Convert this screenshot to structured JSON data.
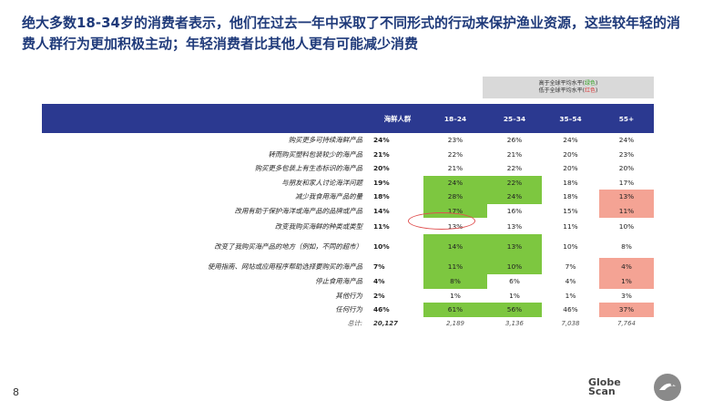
{
  "title": "绝大多数18-34岁的消费者表示，他们在过去一年中采取了不同形式的行动来保护渔业资源，这些较年轻的消费人群行为更加积极主动；年轻消费者比其他人更有可能减少消费",
  "legend": {
    "line1_prefix": "高于全球平均水平(",
    "line1_color": "绿色",
    "line1_suffix": ")",
    "line2_prefix": "低于全球平均水平(",
    "line2_color": "红色",
    "line2_suffix": ")"
  },
  "colors": {
    "header_bg": "#2b3990",
    "green": "#7dc740",
    "red": "#f4a394",
    "title": "#1f3a7a"
  },
  "page_number": "8",
  "logo_text": [
    "Globe",
    "Scan"
  ],
  "chart_data": {
    "type": "table",
    "columns": [
      "海鲜人群",
      "18–24",
      "25–34",
      "35–54",
      "55+"
    ],
    "rows": [
      {
        "label": "购买更多可持续海鲜产品",
        "values": [
          "24%",
          "23%",
          "26%",
          "24%",
          "24%"
        ],
        "highlight": [
          "",
          "",
          "",
          "",
          ""
        ]
      },
      {
        "label": "转而购买塑料包装较少的海产品",
        "values": [
          "21%",
          "22%",
          "21%",
          "20%",
          "23%"
        ],
        "highlight": [
          "",
          "",
          "",
          "",
          ""
        ]
      },
      {
        "label": "购买更多包装上有生态标识的海产品",
        "values": [
          "20%",
          "21%",
          "22%",
          "20%",
          "20%"
        ],
        "highlight": [
          "",
          "",
          "",
          "",
          ""
        ]
      },
      {
        "label": "与朋友和家人讨论海洋问题",
        "values": [
          "19%",
          "24%",
          "22%",
          "18%",
          "17%"
        ],
        "highlight": [
          "",
          "green",
          "green",
          "",
          ""
        ]
      },
      {
        "label": "减少我食用海产品的量",
        "values": [
          "18%",
          "28%",
          "24%",
          "18%",
          "13%"
        ],
        "highlight": [
          "",
          "green",
          "green",
          "",
          "red"
        ]
      },
      {
        "label": "改用有助于保护海洋或海产品的品牌或产品",
        "values": [
          "14%",
          "17%",
          "16%",
          "15%",
          "11%"
        ],
        "highlight": [
          "",
          "green",
          "",
          "",
          "red"
        ]
      },
      {
        "label": "改变我购买海鲜的种类或类型",
        "values": [
          "11%",
          "13%",
          "13%",
          "11%",
          "10%"
        ],
        "highlight": [
          "",
          "",
          "",
          "",
          ""
        ]
      },
      {
        "label": "改变了我购买海产品的地方（例如，不同的超市）",
        "values": [
          "10%",
          "14%",
          "13%",
          "10%",
          "8%"
        ],
        "highlight": [
          "",
          "green",
          "green",
          "",
          ""
        ]
      },
      {
        "label": "使用指南、网站或应用程序帮助选择要购买的海产品",
        "values": [
          "7%",
          "11%",
          "10%",
          "7%",
          "4%"
        ],
        "highlight": [
          "",
          "green",
          "green",
          "",
          "red"
        ]
      },
      {
        "label": "停止食用海产品",
        "values": [
          "4%",
          "8%",
          "6%",
          "4%",
          "1%"
        ],
        "highlight": [
          "",
          "green",
          "",
          "",
          "red"
        ]
      },
      {
        "label": "其他行为",
        "values": [
          "2%",
          "1%",
          "1%",
          "1%",
          "3%"
        ],
        "highlight": [
          "",
          "",
          "",
          "",
          ""
        ]
      },
      {
        "label": "任何行为",
        "values": [
          "46%",
          "61%",
          "56%",
          "46%",
          "37%"
        ],
        "highlight": [
          "",
          "green",
          "green",
          "",
          "red"
        ]
      }
    ],
    "total": {
      "label": "总计:",
      "values": [
        "20,127",
        "2,189",
        "3,136",
        "7,038",
        "7,764"
      ]
    }
  }
}
